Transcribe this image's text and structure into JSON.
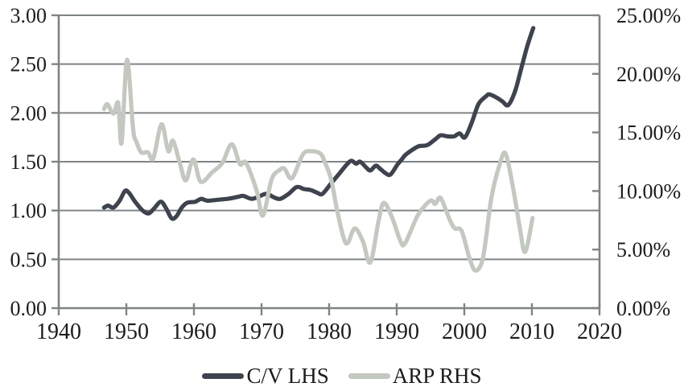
{
  "chart_data": {
    "type": "line",
    "title": "",
    "grid": "horizontal",
    "legend_position": "bottom",
    "x_axis": {
      "min": 1940,
      "max": 2020,
      "tick_values": [
        1940,
        1950,
        1960,
        1970,
        1980,
        1990,
        2000,
        2010,
        2020
      ],
      "tick_labels": [
        "1940",
        "1950",
        "1960",
        "1970",
        "1980",
        "1990",
        "2000",
        "2010",
        "2020"
      ]
    },
    "y_axis_left": {
      "min": 0,
      "max": 3,
      "tick_values": [
        0,
        0.5,
        1,
        1.5,
        2,
        2.5,
        3
      ],
      "tick_labels": [
        "0.00",
        "0.50",
        "1.00",
        "1.50",
        "2.00",
        "2.50",
        "3.00"
      ]
    },
    "y_axis_right": {
      "min": 0,
      "max": 25,
      "tick_values": [
        0,
        5,
        10,
        15,
        20,
        25
      ],
      "tick_labels": [
        "0.00%",
        "5.00%",
        "10.00%",
        "15.00%",
        "20.00%",
        "25.00%"
      ]
    },
    "series": [
      {
        "name": "C/V LHS",
        "axis": "left",
        "color": "#3e434e",
        "points": [
          [
            1946.7,
            1.03
          ],
          [
            1947.3,
            1.05
          ],
          [
            1948.1,
            1.03
          ],
          [
            1949.0,
            1.1
          ],
          [
            1949.8,
            1.2
          ],
          [
            1950.4,
            1.18
          ],
          [
            1951.3,
            1.09
          ],
          [
            1952.4,
            1.0
          ],
          [
            1953.3,
            0.97
          ],
          [
            1954.1,
            1.02
          ],
          [
            1955.1,
            1.09
          ],
          [
            1955.9,
            1.02
          ],
          [
            1956.7,
            0.92
          ],
          [
            1957.4,
            0.94
          ],
          [
            1958.2,
            1.03
          ],
          [
            1959.0,
            1.08
          ],
          [
            1960.2,
            1.09
          ],
          [
            1961.1,
            1.12
          ],
          [
            1962.0,
            1.1
          ],
          [
            1963.5,
            1.11
          ],
          [
            1965.0,
            1.12
          ],
          [
            1966.5,
            1.14
          ],
          [
            1967.3,
            1.15
          ],
          [
            1968.5,
            1.12
          ],
          [
            1969.5,
            1.14
          ],
          [
            1970.7,
            1.17
          ],
          [
            1972.0,
            1.13
          ],
          [
            1972.8,
            1.12
          ],
          [
            1974.0,
            1.17
          ],
          [
            1975.2,
            1.24
          ],
          [
            1976.3,
            1.22
          ],
          [
            1977.3,
            1.21
          ],
          [
            1978.3,
            1.18
          ],
          [
            1979.0,
            1.17
          ],
          [
            1980.2,
            1.27
          ],
          [
            1981.4,
            1.37
          ],
          [
            1982.6,
            1.47
          ],
          [
            1983.3,
            1.51
          ],
          [
            1984.0,
            1.48
          ],
          [
            1984.6,
            1.5
          ],
          [
            1985.5,
            1.44
          ],
          [
            1986.1,
            1.41
          ],
          [
            1986.9,
            1.46
          ],
          [
            1987.5,
            1.43
          ],
          [
            1988.4,
            1.38
          ],
          [
            1989.1,
            1.37
          ],
          [
            1990.1,
            1.47
          ],
          [
            1990.7,
            1.52
          ],
          [
            1991.3,
            1.57
          ],
          [
            1992.5,
            1.63
          ],
          [
            1993.3,
            1.66
          ],
          [
            1994.5,
            1.67
          ],
          [
            1995.7,
            1.73
          ],
          [
            1996.5,
            1.77
          ],
          [
            1997.5,
            1.76
          ],
          [
            1998.5,
            1.76
          ],
          [
            1999.3,
            1.79
          ],
          [
            2000.1,
            1.75
          ],
          [
            2001.1,
            1.9
          ],
          [
            2002.1,
            2.09
          ],
          [
            2003.2,
            2.17
          ],
          [
            2003.7,
            2.19
          ],
          [
            2004.7,
            2.16
          ],
          [
            2005.6,
            2.12
          ],
          [
            2006.5,
            2.08
          ],
          [
            2007.5,
            2.22
          ],
          [
            2008.4,
            2.45
          ],
          [
            2009.3,
            2.68
          ],
          [
            2010.2,
            2.87
          ]
        ]
      },
      {
        "name": "ARP RHS",
        "axis": "right",
        "color": "#c3c8c1",
        "points": [
          [
            1946.7,
            17.0
          ],
          [
            1947.2,
            17.4
          ],
          [
            1948.1,
            16.6
          ],
          [
            1948.8,
            17.5
          ],
          [
            1949.3,
            14.1
          ],
          [
            1950.1,
            21.2
          ],
          [
            1951.0,
            15.3
          ],
          [
            1951.5,
            14.2
          ],
          [
            1952.2,
            13.3
          ],
          [
            1953.2,
            13.3
          ],
          [
            1954.0,
            12.8
          ],
          [
            1955.2,
            15.7
          ],
          [
            1956.2,
            13.4
          ],
          [
            1956.9,
            14.3
          ],
          [
            1957.9,
            12.4
          ],
          [
            1958.8,
            10.9
          ],
          [
            1959.9,
            12.7
          ],
          [
            1961.0,
            10.8
          ],
          [
            1962.7,
            11.6
          ],
          [
            1964.2,
            12.4
          ],
          [
            1965.6,
            14.0
          ],
          [
            1966.8,
            12.3
          ],
          [
            1967.7,
            12.4
          ],
          [
            1969.3,
            10.0
          ],
          [
            1970.2,
            7.9
          ],
          [
            1971.5,
            11.0
          ],
          [
            1972.7,
            11.8
          ],
          [
            1973.4,
            11.9
          ],
          [
            1974.5,
            11.1
          ],
          [
            1976.1,
            13.1
          ],
          [
            1977.2,
            13.4
          ],
          [
            1978.7,
            13.2
          ],
          [
            1979.4,
            12.4
          ],
          [
            1980.3,
            11.0
          ],
          [
            1981.2,
            8.3
          ],
          [
            1982.2,
            5.9
          ],
          [
            1982.8,
            5.6
          ],
          [
            1983.8,
            6.8
          ],
          [
            1985.0,
            5.7
          ],
          [
            1986.1,
            3.9
          ],
          [
            1987.3,
            7.4
          ],
          [
            1988.1,
            9.0
          ],
          [
            1989.4,
            7.6
          ],
          [
            1990.5,
            5.8
          ],
          [
            1991.2,
            5.5
          ],
          [
            1993.0,
            7.8
          ],
          [
            1994.1,
            8.7
          ],
          [
            1995.1,
            9.2
          ],
          [
            1995.7,
            8.9
          ],
          [
            1996.5,
            9.4
          ],
          [
            1997.8,
            7.6
          ],
          [
            1998.6,
            6.8
          ],
          [
            1999.6,
            6.6
          ],
          [
            2000.8,
            4.2
          ],
          [
            2001.7,
            3.2
          ],
          [
            2002.8,
            4.4
          ],
          [
            2004.0,
            9.4
          ],
          [
            2005.2,
            12.2
          ],
          [
            2006.1,
            13.2
          ],
          [
            2007.2,
            10.3
          ],
          [
            2008.2,
            6.9
          ],
          [
            2009.0,
            4.8
          ],
          [
            2010.1,
            7.7
          ]
        ]
      }
    ]
  },
  "colors": {
    "axis": "#7f8486",
    "text": "#1c1c1c",
    "background": "#ffffff"
  }
}
